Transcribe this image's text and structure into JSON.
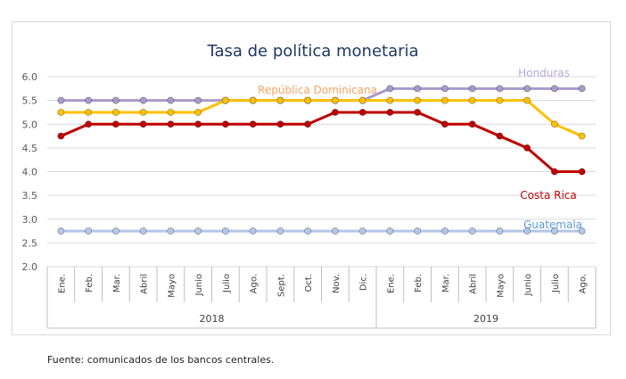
{
  "source_note": "Fuente: comunicados de los bancos centrales.",
  "chart_data": {
    "type": "line",
    "title": "Tasa de política monetaria",
    "xlabel": "",
    "ylabel": "",
    "ylim": [
      2.0,
      6.0
    ],
    "yticks": [
      "2.0",
      "2.5",
      "3.0",
      "3.5",
      "4.0",
      "4.5",
      "5.0",
      "5.5",
      "6.0"
    ],
    "grid": true,
    "categories": [
      "Ene.",
      "Feb.",
      "Mar.",
      "Abril",
      "Mayo",
      "Junio",
      "Julio",
      "Ago.",
      "Sept.",
      "Oct.",
      "Nov.",
      "Dic.",
      "Ene.",
      "Feb.",
      "Mar.",
      "Abril",
      "Mayo",
      "Junio",
      "Julio",
      "Ago."
    ],
    "year_groups": [
      {
        "label": "2018",
        "count": 12
      },
      {
        "label": "2019",
        "count": 8
      }
    ],
    "series": [
      {
        "name": "Guatemala",
        "color": "#b4c7e7",
        "label_color": "#5b9bd5",
        "values": [
          2.75,
          2.75,
          2.75,
          2.75,
          2.75,
          2.75,
          2.75,
          2.75,
          2.75,
          2.75,
          2.75,
          2.75,
          2.75,
          2.75,
          2.75,
          2.75,
          2.75,
          2.75,
          2.75,
          2.75
        ]
      },
      {
        "name": "Honduras",
        "color": "#a89bc9",
        "label_color": "#b4a7d6",
        "values": [
          5.5,
          5.5,
          5.5,
          5.5,
          5.5,
          5.5,
          5.5,
          5.5,
          5.5,
          5.5,
          5.5,
          5.5,
          5.75,
          5.75,
          5.75,
          5.75,
          5.75,
          5.75,
          5.75,
          5.75
        ]
      },
      {
        "name": "República Dominicana",
        "color": "#ffc000",
        "label_color": "#f4a460",
        "values": [
          5.25,
          5.25,
          5.25,
          5.25,
          5.25,
          5.25,
          5.5,
          5.5,
          5.5,
          5.5,
          5.5,
          5.5,
          5.5,
          5.5,
          5.5,
          5.5,
          5.5,
          5.5,
          5.0,
          4.75
        ]
      },
      {
        "name": "Costa Rica",
        "color": "#c00000",
        "label_color": "#c00000",
        "values": [
          4.75,
          5.0,
          5.0,
          5.0,
          5.0,
          5.0,
          5.0,
          5.0,
          5.0,
          5.0,
          5.25,
          5.25,
          5.25,
          5.25,
          5.0,
          5.0,
          4.75,
          4.5,
          4.0,
          4.0
        ]
      }
    ]
  }
}
